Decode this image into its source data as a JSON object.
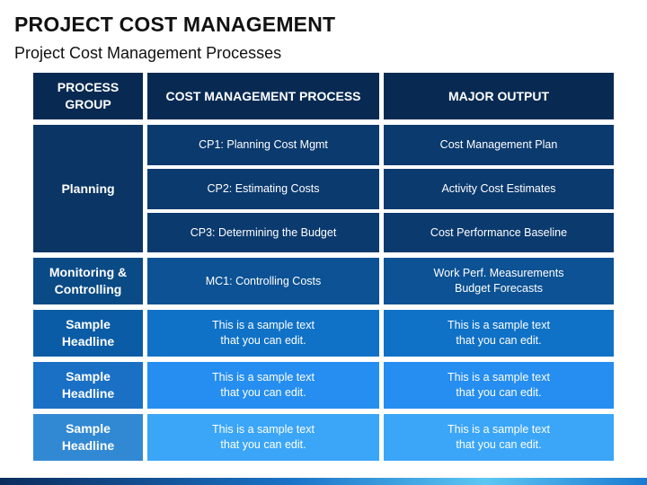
{
  "title": "PROJECT COST MANAGEMENT",
  "subtitle": "Project Cost Management Processes",
  "headers": {
    "group": "PROCESS\nGROUP",
    "process": "COST MANAGEMENT PROCESS",
    "output": "MAJOR OUTPUT"
  },
  "groups": [
    {
      "label": "Planning",
      "color": "#0a3565"
    },
    {
      "label": "Monitoring &\nControlling",
      "color": "#0a4a85"
    },
    {
      "label": "Sample\nHeadline",
      "color": "#0b5ca6"
    },
    {
      "label": "Sample\nHeadline",
      "color": "#1a70c4"
    },
    {
      "label": "Sample\nHeadline",
      "color": "#3289d3"
    }
  ],
  "rows": [
    {
      "process": "CP1: Planning Cost Mgmt",
      "output": "Cost Management Plan",
      "color": "#0b3a6e"
    },
    {
      "process": "CP2: Estimating Costs",
      "output": "Activity Cost Estimates",
      "color": "#0b3a6e"
    },
    {
      "process": "CP3: Determining the Budget",
      "output": "Cost Performance Baseline",
      "color": "#0b3a6e"
    },
    {
      "process": "MC1: Controlling Costs",
      "output": "Work Perf. Measurements\nBudget Forecasts",
      "color": "#0c5294"
    },
    {
      "process": "This is a sample text\nthat you can edit.",
      "output": "This is a sample text\nthat you can edit.",
      "color": "#1072c7"
    },
    {
      "process": "This is a sample text\nthat you can edit.",
      "output": "This is a sample text\nthat you can edit.",
      "color": "#258ef0"
    },
    {
      "process": "This is a sample text\nthat you can edit.",
      "output": "This is a sample text\nthat you can edit.",
      "color": "#3ba6f8"
    }
  ]
}
